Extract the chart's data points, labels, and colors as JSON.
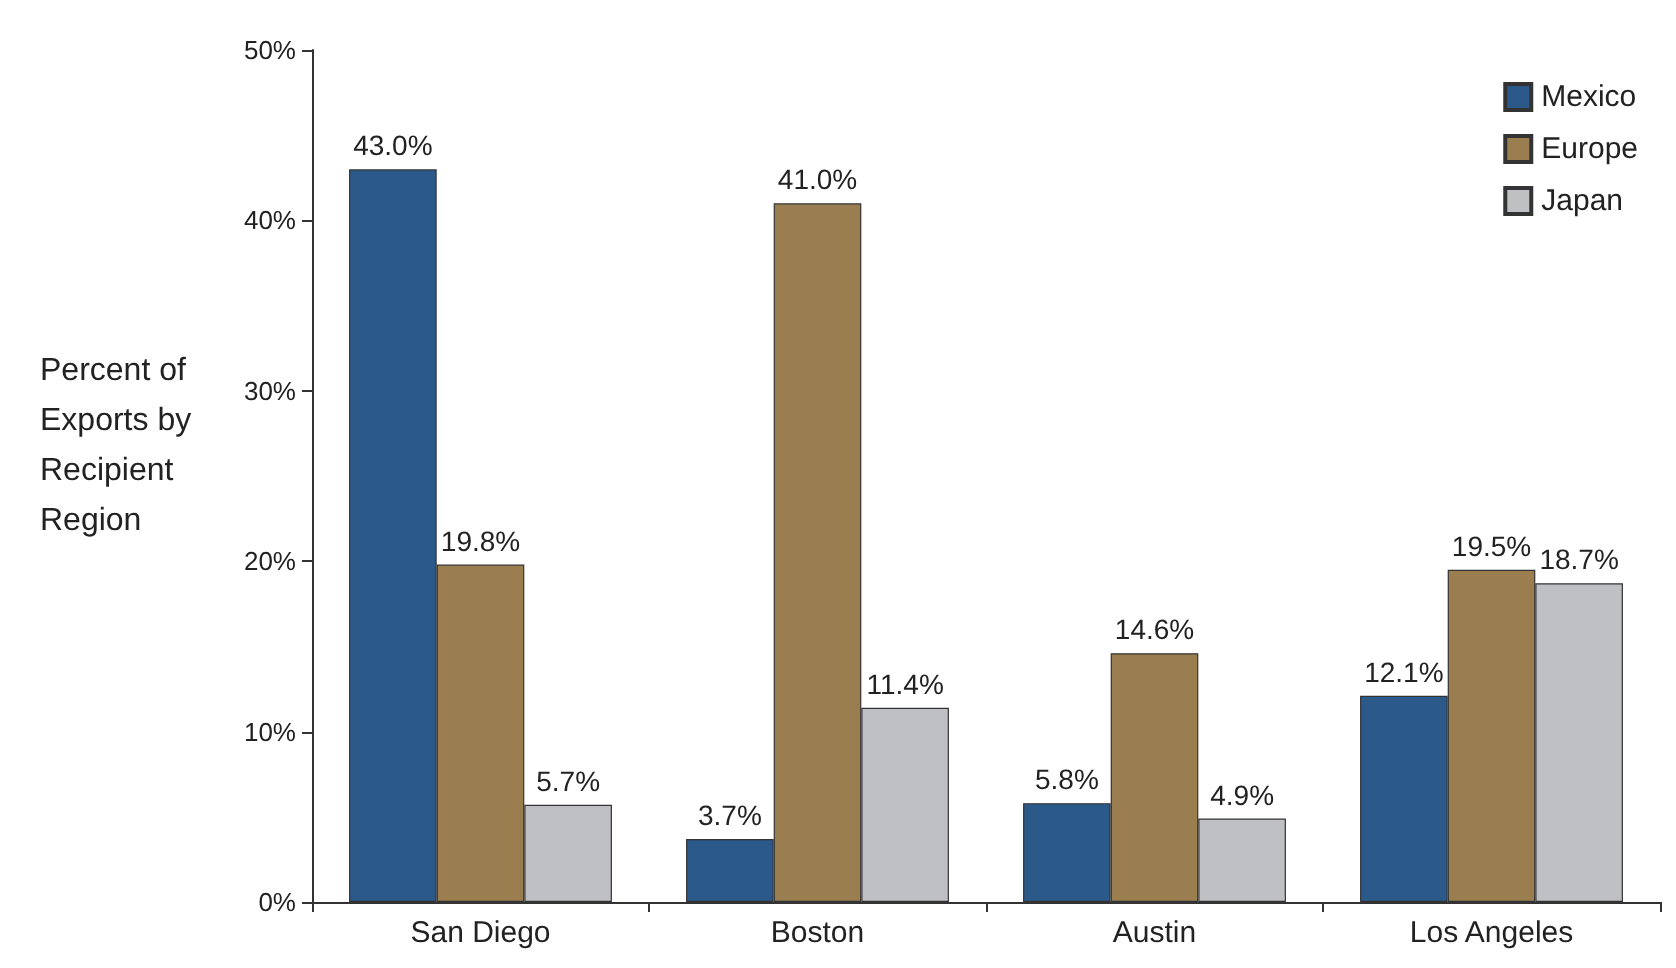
{
  "chart_data": {
    "type": "bar",
    "ylabel": "Percent of\nExports by\nRecipient\nRegion",
    "categories": [
      "San Diego",
      "Boston",
      "Austin",
      "Los Angeles"
    ],
    "series": [
      {
        "name": "Mexico",
        "color": "#2b5a8a",
        "values": [
          43.0,
          3.7,
          5.8,
          12.1
        ],
        "value_labels": [
          "43.0%",
          "3.7%",
          "5.8%",
          "12.1%"
        ]
      },
      {
        "name": "Europe",
        "color": "#9b7e4f",
        "values": [
          19.8,
          41.0,
          14.6,
          19.5
        ],
        "value_labels": [
          "19.8%",
          "41.0%",
          "14.6%",
          "19.5%"
        ]
      },
      {
        "name": "Japan",
        "color": "#bfc0c4",
        "values": [
          5.7,
          11.4,
          4.9,
          18.7
        ],
        "value_labels": [
          "5.7%",
          "11.4%",
          "4.9%",
          "18.7%"
        ]
      }
    ],
    "ylim": [
      0,
      50
    ],
    "yticks": [
      {
        "value": 0,
        "label": "0%"
      },
      {
        "value": 10,
        "label": "10%"
      },
      {
        "value": 20,
        "label": "20%"
      },
      {
        "value": 30,
        "label": "30%"
      },
      {
        "value": 40,
        "label": "40%"
      },
      {
        "value": 50,
        "label": "50%"
      }
    ],
    "grid": false,
    "legend": "top right"
  }
}
